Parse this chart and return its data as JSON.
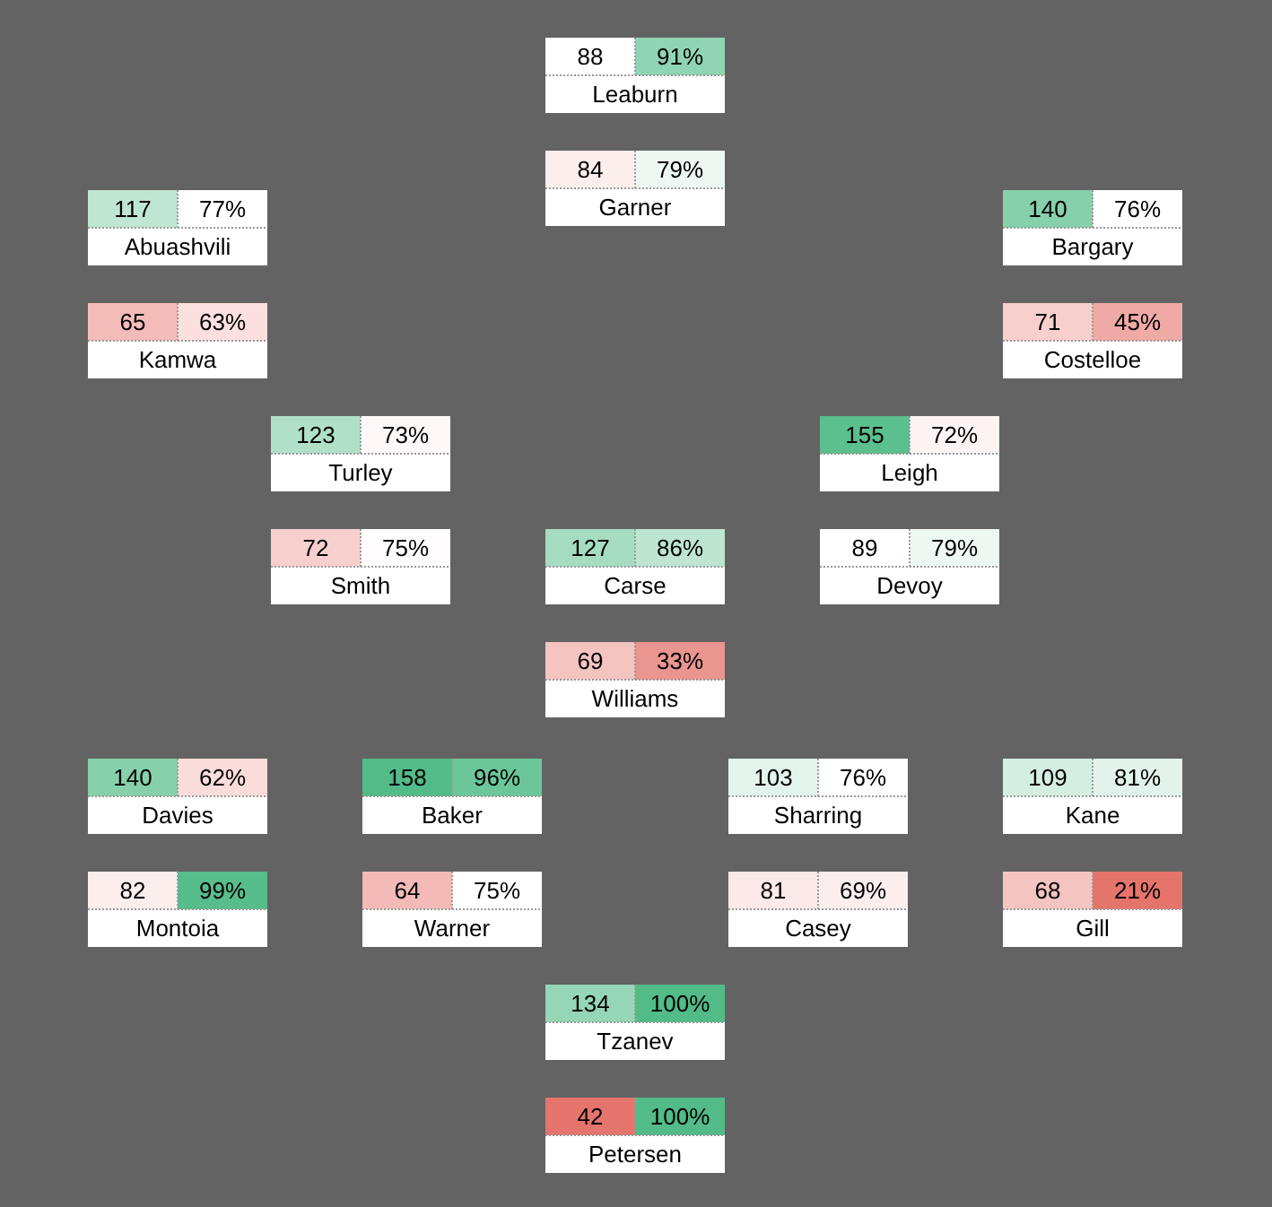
{
  "chart_data": {
    "type": "other",
    "data_labels": true,
    "categories": [
      "Leaburn",
      "Garner",
      "Abuashvili",
      "Bargary",
      "Kamwa",
      "Costelloe",
      "Turley",
      "Leigh",
      "Smith",
      "Carse",
      "Devoy",
      "Williams",
      "Davies",
      "Baker",
      "Sharring",
      "Kane",
      "Montoia",
      "Warner",
      "Casey",
      "Gill",
      "Tzanev",
      "Petersen"
    ],
    "series": [
      {
        "values": [
          88,
          84,
          117,
          140,
          65,
          71,
          123,
          155,
          72,
          127,
          89,
          69,
          140,
          158,
          103,
          109,
          82,
          64,
          81,
          68,
          134,
          42
        ],
        "colors": [
          "#ffffff",
          "#fdeeee",
          "#bfe6d3",
          "#86d0ab",
          "#f4bcb9",
          "#f7cfcd",
          "#b0e0c8",
          "#5bbf8e",
          "#f7cfcd",
          "#a6dcc2",
          "#ffffff",
          "#f4c4c1",
          "#86d0ab",
          "#52bb88",
          "#e3f4ec",
          "#d5eee2",
          "#fdeeee",
          "#f3bab7",
          "#fce9e9",
          "#f4c4c1",
          "#95d6b6",
          "#e5756c"
        ]
      },
      {
        "values": [
          91,
          79,
          77,
          76,
          63,
          45,
          73,
          72,
          75,
          86,
          79,
          33,
          62,
          96,
          76,
          81,
          99,
          75,
          69,
          21,
          100,
          100
        ],
        "value_labels": [
          "91%",
          "79%",
          "77%",
          "76%",
          "63%",
          "45%",
          "73%",
          "72%",
          "75%",
          "86%",
          "79%",
          "33%",
          "62%",
          "96%",
          "76%",
          "81%",
          "99%",
          "75%",
          "69%",
          "21%",
          "100%",
          "100%"
        ],
        "colors": [
          "#8fd4b3",
          "#eef8f3",
          "#ffffff",
          "#ffffff",
          "#fbe0df",
          "#f0aaa5",
          "#fef8f8",
          "#fdf3f3",
          "#fefcfc",
          "#bde5d2",
          "#eef8f3",
          "#ea958f",
          "#fadcdb",
          "#6bc79a",
          "#ffffff",
          "#e1f3ea",
          "#57bd8b",
          "#ffffff",
          "#fdeeee",
          "#e5756c",
          "#52bb88",
          "#52bb88"
        ]
      }
    ]
  }
}
